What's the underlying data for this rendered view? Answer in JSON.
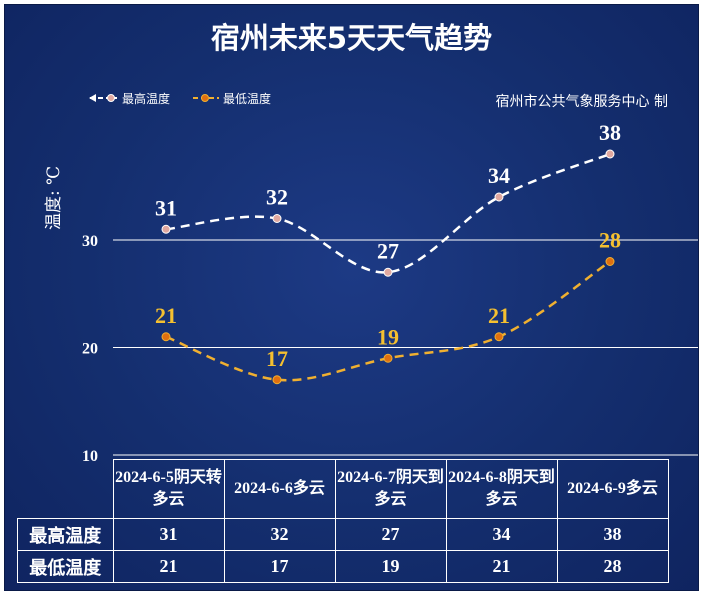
{
  "title": "宿州未来5天天气趋势",
  "credit": "宿州市公共气象服务中心 制",
  "legend": {
    "high": "最高温度",
    "low": "最低温度"
  },
  "colors": {
    "high_line": "#ffffff",
    "high_marker": "#e0a8a0",
    "low_line": "#f0b030",
    "low_marker": "#e07010",
    "high_label": "#ffffff",
    "low_label": "#f5c030",
    "background": "#142e6e"
  },
  "table": {
    "headers": [
      "2024-6-5阴天转多云",
      "2024-6-6多云",
      "2024-6-7阴天到多云",
      "2024-6-8阴天到多云",
      "2024-6-9多云"
    ],
    "rows": [
      {
        "label": "最高温度",
        "values": [
          "31",
          "32",
          "27",
          "34",
          "38"
        ]
      },
      {
        "label": "最低温度",
        "values": [
          "21",
          "17",
          "19",
          "21",
          "28"
        ]
      }
    ]
  },
  "chart_data": {
    "type": "line",
    "categories": [
      "2024-6-5阴天转多云",
      "2024-6-6多云",
      "2024-6-7阴天到多云",
      "2024-6-8阴天到多云",
      "2024-6-9多云"
    ],
    "series": [
      {
        "name": "最高温度",
        "values": [
          31,
          32,
          27,
          34,
          38
        ]
      },
      {
        "name": "最低温度",
        "values": [
          21,
          17,
          19,
          21,
          28
        ]
      }
    ],
    "title": "宿州未来5天天气趋势",
    "xlabel": "",
    "ylabel": "温度: ℃",
    "yticks": [
      "10",
      "20",
      "30"
    ],
    "ylim": [
      10,
      40
    ],
    "grid": true,
    "legend_position": "top-left"
  }
}
